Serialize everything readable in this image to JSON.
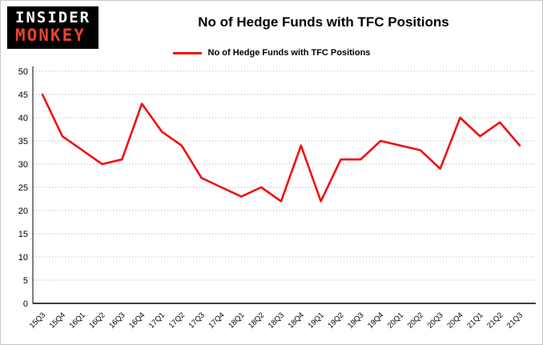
{
  "logo": {
    "line1": "INSIDER",
    "line2": "MONKEY"
  },
  "header": {
    "title": "No of Hedge Funds with TFC Positions"
  },
  "legend": {
    "label": "No of Hedge Funds with TFC Positions"
  },
  "colors": {
    "line": "#f10e0e",
    "grid": "#a8a8a8",
    "axis": "#000000",
    "logo_bg": "#000000",
    "logo_text": "#ffffff",
    "logo_accent": "#e8432d"
  },
  "chart_data": {
    "type": "line",
    "title": "No of Hedge Funds with TFC Positions",
    "xlabel": "",
    "ylabel": "",
    "ylim": [
      0,
      50
    ],
    "yticks": [
      0,
      5,
      10,
      15,
      20,
      25,
      30,
      35,
      40,
      45,
      50
    ],
    "grid": true,
    "legend_position": "top",
    "categories": [
      "15Q3",
      "15Q4",
      "16Q1",
      "16Q2",
      "16Q3",
      "16Q4",
      "17Q1",
      "17Q2",
      "17Q3",
      "17Q4",
      "18Q1",
      "18Q2",
      "18Q3",
      "18Q4",
      "19Q1",
      "19Q2",
      "19Q3",
      "19Q4",
      "20Q1",
      "20Q2",
      "20Q3",
      "20Q4",
      "21Q1",
      "21Q2",
      "21Q3"
    ],
    "series": [
      {
        "name": "No of Hedge Funds with TFC Positions",
        "values": [
          45,
          36,
          33,
          30,
          31,
          43,
          37,
          34,
          27,
          25,
          23,
          25,
          22,
          34,
          22,
          31,
          31,
          35,
          34,
          33,
          29,
          40,
          36,
          39,
          34
        ]
      }
    ]
  }
}
